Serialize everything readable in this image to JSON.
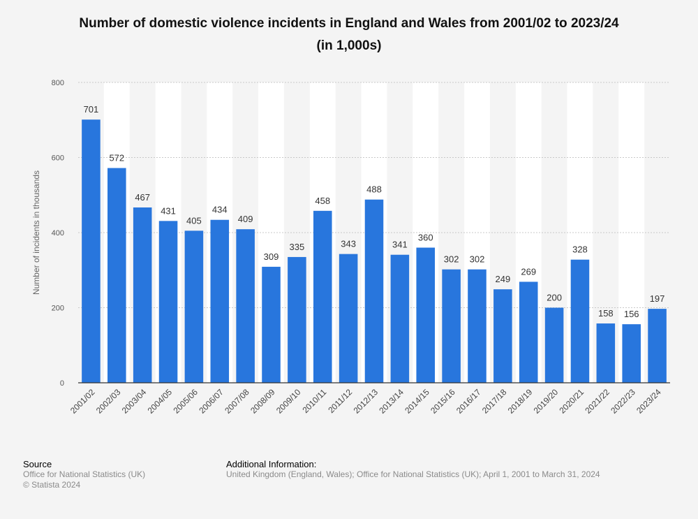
{
  "chart_data": {
    "type": "bar",
    "title": "Number of domestic violence incidents in England and Wales from 2001/02 to 2023/24",
    "subtitle": "(in 1,000s)",
    "xlabel": "",
    "ylabel": "Number of incidents in thousands",
    "ylim": [
      0,
      800
    ],
    "yticks": [
      0,
      200,
      400,
      600,
      800
    ],
    "grid": true,
    "legend": "none",
    "categories": [
      "2001/02",
      "2002/03",
      "2003/04",
      "2004/05",
      "2005/06",
      "2006/07",
      "2007/08",
      "2008/09",
      "2009/10",
      "2010/11",
      "2011/12",
      "2012/13",
      "2013/14",
      "2014/15",
      "2015/16",
      "2016/17",
      "2017/18",
      "2018/19",
      "2019/20",
      "2020/21",
      "2021/22",
      "2022/23",
      "2023/24"
    ],
    "values": [
      701,
      572,
      467,
      431,
      405,
      434,
      409,
      309,
      335,
      458,
      343,
      488,
      341,
      360,
      302,
      302,
      249,
      269,
      200,
      328,
      158,
      156,
      197
    ],
    "bar_color": "#2876dd"
  },
  "footer": {
    "source_heading": "Source",
    "source_lines": [
      "Office for National Statistics (UK)",
      "© Statista 2024"
    ],
    "additional_heading": "Additional Information:",
    "additional_text": "United Kingdom (England, Wales); Office for National Statistics (UK); April 1, 2001 to March 31, 2024"
  }
}
